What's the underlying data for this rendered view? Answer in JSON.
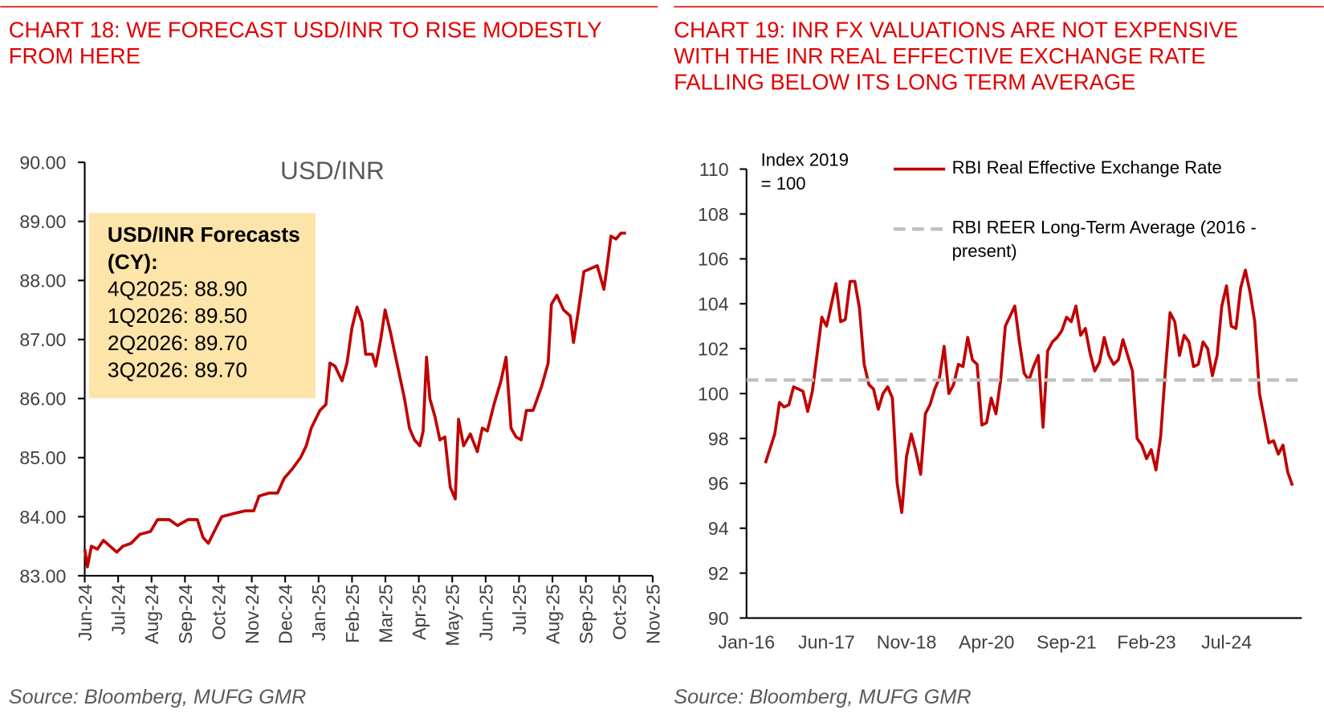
{
  "chart_data": [
    {
      "type": "line",
      "title": [
        "CHART 18: WE FORECAST USD/INR TO RISE MODESTLY",
        "FROM HERE"
      ],
      "plot_label": "USD/INR",
      "annotation": {
        "title": "USD/INR Forecasts (CY):",
        "lines": [
          "4Q2025: 88.90",
          "1Q2026: 89.50",
          "2Q2026: 89.70",
          "3Q2026: 89.70"
        ]
      },
      "source": "Source: Bloomberg, MUFG GMR",
      "xlim": [
        0,
        17
      ],
      "xticks": [
        {
          "value": 0,
          "label": "Jun-24"
        },
        {
          "value": 1,
          "label": "Jul-24"
        },
        {
          "value": 2,
          "label": "Aug-24"
        },
        {
          "value": 3,
          "label": "Sep-24"
        },
        {
          "value": 4,
          "label": "Oct-24"
        },
        {
          "value": 5,
          "label": "Nov-24"
        },
        {
          "value": 6,
          "label": "Dec-24"
        },
        {
          "value": 7,
          "label": "Jan-25"
        },
        {
          "value": 8,
          "label": "Feb-25"
        },
        {
          "value": 9,
          "label": "Mar-25"
        },
        {
          "value": 10,
          "label": "Apr-25"
        },
        {
          "value": 11,
          "label": "May-25"
        },
        {
          "value": 12,
          "label": "Jun-25"
        },
        {
          "value": 13,
          "label": "Jul-25"
        },
        {
          "value": 14,
          "label": "Aug-25"
        },
        {
          "value": 15,
          "label": "Sep-25"
        },
        {
          "value": 16,
          "label": "Oct-25"
        },
        {
          "value": 17,
          "label": "Nov-25"
        }
      ],
      "ylim": [
        83,
        90
      ],
      "yticks": [
        {
          "value": 83,
          "label": "83.00"
        },
        {
          "value": 84,
          "label": "84.00"
        },
        {
          "value": 85,
          "label": "85.00"
        },
        {
          "value": 86,
          "label": "86.00"
        },
        {
          "value": 87,
          "label": "87.00"
        },
        {
          "value": 88,
          "label": "88.00"
        },
        {
          "value": 89,
          "label": "89.00"
        },
        {
          "value": 90,
          "label": "90.00"
        }
      ],
      "series": [
        {
          "color": "#c00000",
          "x": [
            0,
            0.08,
            0.2,
            0.38,
            0.56,
            0.76,
            0.96,
            1.14,
            1.39,
            1.65,
            1.97,
            2.18,
            2.53,
            2.78,
            3.09,
            3.37,
            3.54,
            3.7,
            3.92,
            4.1,
            4.43,
            4.81,
            5.06,
            5.22,
            5.52,
            5.77,
            5.97,
            6.2,
            6.46,
            6.63,
            6.78,
            7.04,
            7.22,
            7.34,
            7.49,
            7.7,
            7.85,
            8.0,
            8.15,
            8.3,
            8.41,
            8.61,
            8.71,
            8.86,
            8.99,
            9.16,
            9.27,
            9.42,
            9.57,
            9.72,
            9.87,
            10.03,
            10.13,
            10.23,
            10.33,
            10.48,
            10.63,
            10.78,
            10.94,
            11.09,
            11.19,
            11.34,
            11.54,
            11.75,
            11.9,
            12.05,
            12.25,
            12.46,
            12.61,
            12.76,
            12.91,
            13.06,
            13.22,
            13.42,
            13.67,
            13.87,
            13.97,
            14.13,
            14.33,
            14.53,
            14.63,
            14.78,
            14.94,
            15.14,
            15.34,
            15.54,
            15.65,
            15.75,
            15.9,
            16.05,
            16.2
          ],
          "values": [
            83.45,
            83.15,
            83.5,
            83.45,
            83.6,
            83.5,
            83.4,
            83.5,
            83.55,
            83.7,
            83.75,
            83.95,
            83.95,
            83.85,
            83.95,
            83.95,
            83.65,
            83.55,
            83.8,
            84.0,
            84.05,
            84.1,
            84.1,
            84.35,
            84.4,
            84.4,
            84.65,
            84.8,
            85.0,
            85.2,
            85.5,
            85.8,
            85.9,
            86.6,
            86.55,
            86.3,
            86.6,
            87.2,
            87.55,
            87.3,
            86.75,
            86.75,
            86.55,
            87.0,
            87.5,
            87.1,
            86.8,
            86.4,
            86.0,
            85.5,
            85.3,
            85.2,
            85.45,
            86.7,
            86.0,
            85.7,
            85.3,
            85.35,
            84.5,
            84.3,
            85.65,
            85.2,
            85.4,
            85.1,
            85.5,
            85.45,
            85.9,
            86.3,
            86.7,
            85.5,
            85.35,
            85.3,
            85.8,
            85.8,
            86.2,
            86.6,
            87.6,
            87.75,
            87.5,
            87.4,
            86.95,
            87.5,
            88.15,
            88.2,
            88.25,
            87.85,
            88.3,
            88.75,
            88.7,
            88.8,
            88.8
          ]
        }
      ]
    },
    {
      "type": "line",
      "title": [
        "CHART 19: INR FX VALUATIONS ARE NOT EXPENSIVE",
        "WITH THE INR REAL EFFECTIVE EXCHANGE RATE",
        "FALLING BELOW ITS LONG TERM AVERAGE"
      ],
      "axis_note": [
        "Index 2019",
        "= 100"
      ],
      "source": "Source: Bloomberg, MUFG GMR",
      "xlim": [
        0,
        118
      ],
      "xticks": [
        {
          "value": 0,
          "label": "Jan-16"
        },
        {
          "value": 17,
          "label": "Jun-17"
        },
        {
          "value": 34,
          "label": "Nov-18"
        },
        {
          "value": 51,
          "label": "Apr-20"
        },
        {
          "value": 68,
          "label": "Sep-21"
        },
        {
          "value": 85,
          "label": "Feb-23"
        },
        {
          "value": 102,
          "label": "Jul-24"
        }
      ],
      "ylim": [
        90,
        110
      ],
      "yticks": [
        90,
        92,
        94,
        96,
        98,
        100,
        102,
        104,
        106,
        108,
        110
      ],
      "series": [
        {
          "name": "RBI Real Effective Exchange Rate",
          "color": "#c00000",
          "x": [
            4,
            6,
            7,
            8,
            9,
            10,
            12,
            13,
            14,
            16,
            17,
            19,
            20,
            21,
            22,
            23,
            24,
            25,
            26,
            27,
            28,
            29,
            30,
            31,
            32,
            33,
            34,
            35,
            36,
            37,
            38,
            39,
            40,
            41,
            42,
            43,
            44,
            45,
            46,
            47,
            48,
            49,
            50,
            51,
            52,
            53,
            54,
            55,
            57,
            58,
            59,
            60,
            61,
            62,
            63,
            64,
            65,
            66,
            67,
            68,
            69,
            70,
            71,
            72,
            73,
            74,
            75,
            76,
            77,
            78,
            79,
            80,
            81,
            82,
            83,
            84,
            85,
            86,
            87,
            88,
            89,
            90,
            91,
            92,
            93,
            94,
            95,
            96,
            97,
            98,
            99,
            100,
            101,
            102,
            103,
            104,
            105,
            106,
            107,
            108,
            109,
            110,
            111,
            112,
            113,
            114,
            115,
            116
          ],
          "values": [
            96.9,
            98.2,
            99.6,
            99.4,
            99.5,
            100.3,
            100.1,
            99.2,
            100.1,
            103.4,
            103.0,
            104.9,
            103.2,
            103.3,
            105.0,
            105.0,
            103.8,
            101.3,
            100.4,
            100.2,
            99.3,
            100.0,
            100.3,
            99.8,
            96.0,
            94.7,
            97.2,
            98.2,
            97.4,
            96.4,
            99.1,
            99.5,
            100.2,
            100.7,
            102.1,
            100.0,
            100.4,
            101.3,
            101.2,
            102.5,
            101.5,
            101.3,
            98.6,
            98.7,
            99.8,
            99.1,
            100.6,
            103.0,
            103.9,
            102.3,
            100.9,
            100.6,
            101.2,
            101.7,
            98.5,
            101.9,
            102.3,
            102.5,
            102.8,
            103.4,
            103.2,
            103.9,
            102.6,
            102.9,
            101.8,
            101.0,
            101.4,
            102.5,
            101.7,
            101.3,
            101.5,
            102.4,
            101.7,
            101.0,
            98.0,
            97.7,
            97.1,
            97.5,
            96.6,
            98.1,
            101.0,
            103.6,
            103.2,
            101.7,
            102.6,
            102.3,
            101.2,
            101.3,
            102.3,
            102.0,
            100.8,
            101.7,
            103.9,
            104.8,
            103.0,
            102.9,
            104.7,
            105.5,
            104.5,
            103.2,
            100.0,
            98.9,
            97.8,
            97.9,
            97.3,
            97.7,
            96.5,
            95.9
          ]
        },
        {
          "name": "RBI REER Long-Term Average (2016 - present)",
          "color": "#bfbfbf",
          "dashed": true,
          "x": [
            0,
            118
          ],
          "values": [
            100.6,
            100.6
          ]
        }
      ]
    }
  ]
}
